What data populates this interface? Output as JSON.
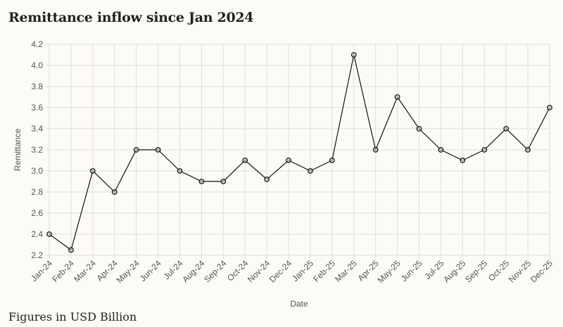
{
  "title": "Remittance inflow since Jan 2024",
  "footnote": "Figures in USD Billion",
  "chart_data": {
    "type": "line",
    "xlabel": "Date",
    "ylabel": "Remittance",
    "ylim": [
      2.2,
      4.2
    ],
    "y_ticks": [
      2.2,
      2.4,
      2.6,
      2.8,
      3.0,
      3.2,
      3.4,
      3.6,
      3.8,
      4.0,
      4.2
    ],
    "grid": true,
    "categories": [
      "Jan-24",
      "Feb-24",
      "Mar-24",
      "Apr-24",
      "May-24",
      "Jun-24",
      "Jul-24",
      "Aug-24",
      "Sep-24",
      "Oct-24",
      "Nov-24",
      "Dec-24",
      "Jan-25",
      "Feb-25",
      "Mar-25",
      "Apr-25",
      "May-25",
      "Jun-25",
      "Jul-25",
      "Aug-25",
      "Sep-25",
      "Oct-25",
      "Nov-25",
      "Dec-25"
    ],
    "series": [
      {
        "values": [
          2.4,
          2.25,
          3.0,
          2.8,
          3.2,
          3.2,
          3.0,
          2.9,
          2.9,
          3.1,
          2.92,
          3.1,
          3.0,
          3.1,
          4.1,
          3.2,
          3.7,
          3.4,
          3.2,
          3.1,
          3.2,
          3.4,
          3.2,
          3.6
        ],
        "color": "#111111"
      }
    ]
  }
}
